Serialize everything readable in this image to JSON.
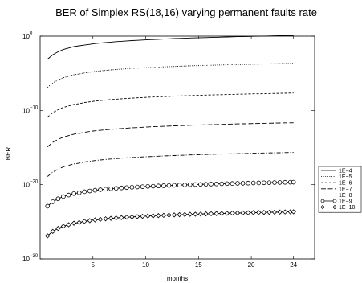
{
  "chart_data": {
    "type": "line",
    "title": "BER of Simplex RS(18,16) varying permanent faults rate",
    "xlabel": "months",
    "ylabel": "BER",
    "xlim": [
      0,
      26
    ],
    "ylim_exponent": [
      -30,
      0
    ],
    "y_scale": "log",
    "x_ticks": [
      5,
      10,
      15,
      20,
      24
    ],
    "y_ticks": [
      {
        "base": "10",
        "exp": "0",
        "value": 0
      },
      {
        "base": "10",
        "exp": "−10",
        "value": -10
      },
      {
        "base": "10",
        "exp": "−20",
        "value": -20
      },
      {
        "base": "10",
        "exp": "−30",
        "value": -30
      }
    ],
    "grid": false,
    "legend_position": "right",
    "x": [
      0.7,
      1.2,
      1.7,
      2.2,
      2.7,
      3.2,
      3.7,
      4.2,
      4.7,
      5.2,
      5.7,
      6.2,
      6.7,
      7.2,
      7.7,
      8.2,
      8.7,
      9.2,
      9.7,
      10.2,
      10.7,
      11.2,
      11.7,
      12.2,
      12.7,
      13.2,
      13.7,
      14.2,
      14.7,
      15.2,
      15.7,
      16.2,
      16.7,
      17.2,
      17.7,
      18.2,
      18.7,
      19.2,
      19.7,
      20.2,
      20.7,
      21.2,
      21.7,
      22.2,
      22.7,
      23.2,
      23.7,
      24.0
    ],
    "series": [
      {
        "name": "1E−4",
        "style": "solid",
        "marker": "none",
        "log10": [
          -3.1,
          -2.5,
          -2.1,
          -1.8,
          -1.6,
          -1.4,
          -1.3,
          -1.2,
          -1.1,
          -1.0,
          -0.93,
          -0.86,
          -0.8,
          -0.74,
          -0.69,
          -0.64,
          -0.6,
          -0.56,
          -0.52,
          -0.48,
          -0.45,
          -0.42,
          -0.39,
          -0.36,
          -0.33,
          -0.3,
          -0.28,
          -0.25,
          -0.23,
          -0.21,
          -0.19,
          -0.17,
          -0.15,
          -0.13,
          -0.11,
          -0.09,
          -0.07,
          -0.06,
          -0.04,
          -0.02,
          -0.01,
          0.01,
          0.02,
          0.04,
          0.05,
          0.07,
          0.08,
          0.09
        ]
      },
      {
        "name": "1E−5",
        "style": "dotted",
        "marker": "none",
        "log10": [
          -6.9,
          -6.3,
          -5.9,
          -5.6,
          -5.4,
          -5.2,
          -5.1,
          -4.95,
          -4.85,
          -4.75,
          -4.68,
          -4.61,
          -4.55,
          -4.49,
          -4.44,
          -4.39,
          -4.35,
          -4.31,
          -4.27,
          -4.23,
          -4.2,
          -4.17,
          -4.14,
          -4.11,
          -4.08,
          -4.05,
          -4.03,
          -4.0,
          -3.98,
          -3.96,
          -3.94,
          -3.92,
          -3.9,
          -3.88,
          -3.86,
          -3.84,
          -3.82,
          -3.81,
          -3.79,
          -3.77,
          -3.76,
          -3.74,
          -3.73,
          -3.71,
          -3.7,
          -3.68,
          -3.67,
          -3.66
        ]
      },
      {
        "name": "1E−6",
        "style": "dashed",
        "marker": "none",
        "log10": [
          -10.9,
          -10.3,
          -9.9,
          -9.6,
          -9.4,
          -9.2,
          -9.1,
          -8.95,
          -8.85,
          -8.75,
          -8.68,
          -8.61,
          -8.55,
          -8.49,
          -8.44,
          -8.39,
          -8.35,
          -8.31,
          -8.27,
          -8.23,
          -8.2,
          -8.17,
          -8.14,
          -8.11,
          -8.08,
          -8.05,
          -8.03,
          -8.0,
          -7.98,
          -7.96,
          -7.94,
          -7.92,
          -7.9,
          -7.88,
          -7.86,
          -7.84,
          -7.82,
          -7.81,
          -7.79,
          -7.77,
          -7.76,
          -7.74,
          -7.73,
          -7.71,
          -7.7,
          -7.68,
          -7.67,
          -7.66
        ]
      },
      {
        "name": "1E−7",
        "style": "longdash",
        "marker": "none",
        "log10": [
          -14.9,
          -14.3,
          -13.9,
          -13.6,
          -13.4,
          -13.2,
          -13.1,
          -12.95,
          -12.85,
          -12.75,
          -12.68,
          -12.61,
          -12.55,
          -12.49,
          -12.44,
          -12.39,
          -12.35,
          -12.31,
          -12.27,
          -12.23,
          -12.2,
          -12.17,
          -12.14,
          -12.11,
          -12.08,
          -12.05,
          -12.03,
          -12.0,
          -11.98,
          -11.96,
          -11.94,
          -11.92,
          -11.9,
          -11.88,
          -11.86,
          -11.84,
          -11.82,
          -11.81,
          -11.79,
          -11.77,
          -11.76,
          -11.74,
          -11.73,
          -11.71,
          -11.7,
          -11.68,
          -11.67,
          -11.66
        ]
      },
      {
        "name": "1E−8",
        "style": "dashdot",
        "marker": "none",
        "log10": [
          -18.9,
          -18.3,
          -17.9,
          -17.6,
          -17.4,
          -17.2,
          -17.1,
          -16.95,
          -16.85,
          -16.75,
          -16.68,
          -16.61,
          -16.55,
          -16.49,
          -16.44,
          -16.39,
          -16.35,
          -16.31,
          -16.27,
          -16.23,
          -16.2,
          -16.17,
          -16.14,
          -16.11,
          -16.08,
          -16.05,
          -16.03,
          -16.0,
          -15.98,
          -15.96,
          -15.94,
          -15.92,
          -15.9,
          -15.88,
          -15.86,
          -15.84,
          -15.82,
          -15.81,
          -15.79,
          -15.77,
          -15.76,
          -15.74,
          -15.73,
          -15.71,
          -15.7,
          -15.68,
          -15.67,
          -15.66
        ]
      },
      {
        "name": "1E−9",
        "style": "solid",
        "marker": "circle",
        "log10": [
          -22.9,
          -22.3,
          -21.9,
          -21.6,
          -21.4,
          -21.2,
          -21.1,
          -20.95,
          -20.85,
          -20.75,
          -20.68,
          -20.61,
          -20.55,
          -20.49,
          -20.44,
          -20.39,
          -20.35,
          -20.31,
          -20.27,
          -20.23,
          -20.2,
          -20.17,
          -20.14,
          -20.11,
          -20.08,
          -20.05,
          -20.03,
          -20.0,
          -19.98,
          -19.96,
          -19.94,
          -19.92,
          -19.9,
          -19.88,
          -19.86,
          -19.84,
          -19.82,
          -19.81,
          -19.79,
          -19.77,
          -19.76,
          -19.74,
          -19.73,
          -19.71,
          -19.7,
          -19.68,
          -19.67,
          -19.66
        ]
      },
      {
        "name": "1E−10",
        "style": "solid",
        "marker": "diamond",
        "log10": [
          -26.9,
          -26.3,
          -25.9,
          -25.6,
          -25.4,
          -25.2,
          -25.1,
          -24.95,
          -24.85,
          -24.75,
          -24.68,
          -24.61,
          -24.55,
          -24.49,
          -24.44,
          -24.39,
          -24.35,
          -24.31,
          -24.27,
          -24.23,
          -24.2,
          -24.17,
          -24.14,
          -24.11,
          -24.08,
          -24.05,
          -24.03,
          -24.0,
          -23.98,
          -23.96,
          -23.94,
          -23.92,
          -23.9,
          -23.88,
          -23.86,
          -23.84,
          -23.82,
          -23.81,
          -23.79,
          -23.77,
          -23.76,
          -23.74,
          -23.73,
          -23.71,
          -23.7,
          -23.68,
          -23.67,
          -23.66
        ]
      }
    ]
  }
}
